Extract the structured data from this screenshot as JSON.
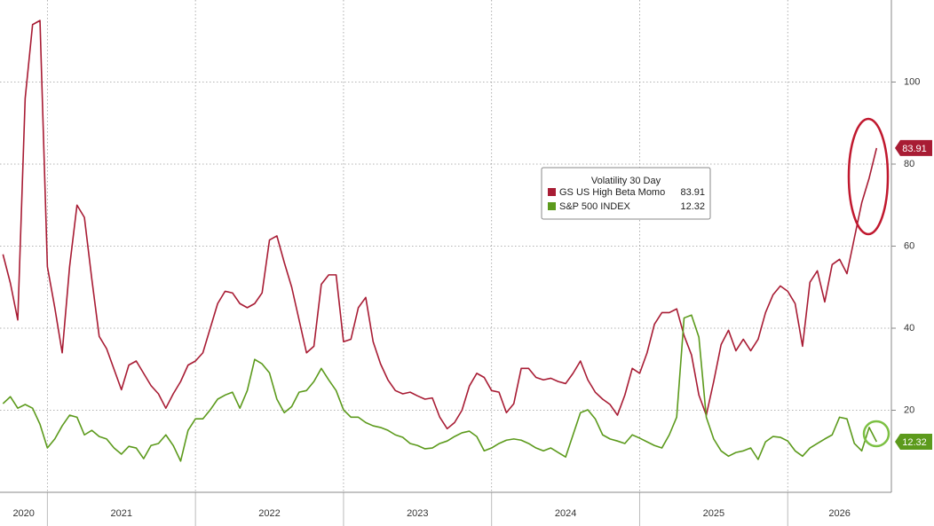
{
  "chart_data": {
    "type": "line",
    "legend_title": "Volatility 30 Day",
    "x": [
      2020.7,
      2020.75,
      2020.8,
      2020.85,
      2020.9,
      2020.95,
      2021,
      2021.05,
      2021.1,
      2021.15,
      2021.2,
      2021.25,
      2021.3,
      2021.35,
      2021.4,
      2021.45,
      2021.5,
      2021.55,
      2021.6,
      2021.65,
      2021.7,
      2021.75,
      2021.8,
      2021.85,
      2021.9,
      2021.95,
      2022,
      2022.05,
      2022.1,
      2022.15,
      2022.2,
      2022.25,
      2022.3,
      2022.35,
      2022.4,
      2022.45,
      2022.5,
      2022.55,
      2022.6,
      2022.65,
      2022.7,
      2022.75,
      2022.8,
      2022.85,
      2022.9,
      2022.95,
      2023,
      2023.05,
      2023.1,
      2023.15,
      2023.2,
      2023.25,
      2023.3,
      2023.35,
      2023.4,
      2023.45,
      2023.5,
      2023.55,
      2023.6,
      2023.65,
      2023.7,
      2023.75,
      2023.8,
      2023.85,
      2023.9,
      2023.95,
      2024,
      2024.05,
      2024.1,
      2024.15,
      2024.2,
      2024.25,
      2024.3,
      2024.35,
      2024.4,
      2024.45,
      2024.5,
      2024.55,
      2024.6,
      2024.65,
      2024.7,
      2024.75,
      2024.8,
      2024.85,
      2024.9,
      2024.95,
      2025,
      2025.05,
      2025.1,
      2025.15,
      2025.2,
      2025.25,
      2025.3,
      2025.35,
      2025.4,
      2025.45,
      2025.5,
      2025.55,
      2025.6,
      2025.65,
      2025.7,
      2025.75,
      2025.8,
      2025.85,
      2025.9,
      2025.95,
      2026,
      2026.05,
      2026.1,
      2026.15,
      2026.2,
      2026.25,
      2026.3,
      2026.35,
      2026.4,
      2026.45,
      2026.5,
      2026.55,
      2026.6
    ],
    "series": [
      {
        "name": "GS US High Beta Momo",
        "color": "#a81c34",
        "values": [
          58,
          51,
          42,
          96,
          114,
          115,
          55,
          45,
          34,
          55,
          70,
          67,
          52,
          38,
          35,
          30,
          25,
          31,
          32,
          29,
          26,
          24,
          20.5,
          24,
          27,
          31,
          32,
          34,
          40,
          46,
          49,
          48.6,
          46,
          45,
          46,
          48.6,
          61.5,
          62.5,
          56,
          50,
          42,
          34,
          35.6,
          50.7,
          53,
          53,
          36.7,
          37.3,
          45,
          47.5,
          36.7,
          31.3,
          27.4,
          24.8,
          24,
          24.4,
          23.5,
          22.7,
          23,
          18.3,
          15.5,
          17,
          20,
          25.9,
          29,
          28,
          24.8,
          24.4,
          19.4,
          21.6,
          30.2,
          30.2,
          28,
          27.4,
          27.8,
          27,
          26.5,
          29,
          32,
          27.4,
          24.4,
          22.7,
          21.4,
          18.8,
          23.7,
          30.2,
          29,
          34,
          41,
          43.8,
          43.8,
          44.7,
          38.2,
          33.5,
          23.7,
          18.8,
          27,
          36,
          39.5,
          34.5,
          37.3,
          34.5,
          37.3,
          43.8,
          48.1,
          50.3,
          49,
          46,
          35.6,
          51.2,
          54,
          46.4,
          55.5,
          56.8,
          53.3,
          62,
          70.6,
          76.6,
          83.91
        ]
      },
      {
        "name": "S&P 500 INDEX",
        "color": "#5c9a1c",
        "values": [
          21.6,
          23.3,
          20.5,
          21.4,
          20.5,
          16.6,
          10.8,
          13,
          16.2,
          18.8,
          18.3,
          14,
          15.1,
          13.6,
          13,
          10.8,
          9.3,
          11.2,
          10.8,
          8.2,
          11.4,
          11.9,
          14,
          11.4,
          7.6,
          15.1,
          17.9,
          17.9,
          20.1,
          22.7,
          23.7,
          24.4,
          20.5,
          24.8,
          32.4,
          31.3,
          29.1,
          22.7,
          19.4,
          20.9,
          24.4,
          24.8,
          27,
          30.2,
          27.4,
          24.8,
          20.1,
          18.3,
          18.3,
          17,
          16.2,
          15.8,
          15.1,
          14,
          13.4,
          11.9,
          11.4,
          10.6,
          10.8,
          11.9,
          12.5,
          13.6,
          14.5,
          14.9,
          13.6,
          10.1,
          10.8,
          11.9,
          12.7,
          13,
          12.7,
          11.9,
          10.8,
          10.1,
          10.8,
          9.7,
          8.6,
          14,
          19.4,
          20.1,
          17.9,
          14,
          13,
          12.5,
          11.9,
          14,
          13.2,
          12.3,
          11.4,
          10.8,
          14,
          18.3,
          42.5,
          43.2,
          37.8,
          18.3,
          13,
          10.1,
          8.8,
          9.7,
          10.1,
          10.8,
          8,
          12.3,
          13.6,
          13.4,
          12.5,
          10.1,
          8.8,
          10.8,
          11.9,
          13,
          14,
          18.3,
          17.9,
          11.9,
          10.1,
          15.8,
          12.32
        ]
      }
    ],
    "xlim": [
      2020.68,
      2026.7
    ],
    "xticks": [
      {
        "value": 2020,
        "label": "2020"
      },
      {
        "value": 2021,
        "label": "2021"
      },
      {
        "value": 2022,
        "label": "2022"
      },
      {
        "value": 2023,
        "label": "2023"
      },
      {
        "value": 2024,
        "label": "2024"
      },
      {
        "value": 2025,
        "label": "2025"
      },
      {
        "value": 2026,
        "label": "2026"
      }
    ],
    "ylim": [
      0,
      120
    ],
    "yticks": [
      20,
      40,
      60,
      80,
      100
    ],
    "grid": true
  }
}
